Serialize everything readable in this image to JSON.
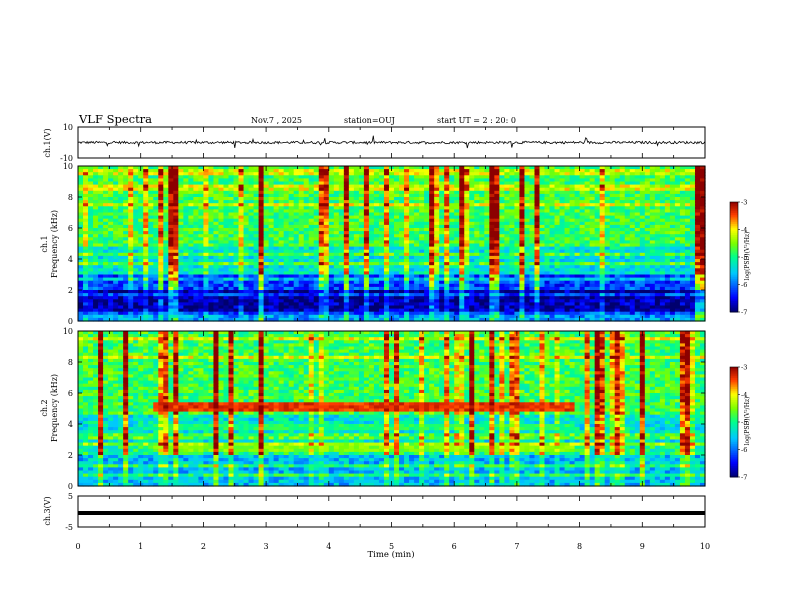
{
  "header": {
    "title": "VLF Spectra",
    "date": "Nov.7 , 2025",
    "station": "station=OUJ",
    "start": "start UT = 2 : 20: 0"
  },
  "chart_data": [
    {
      "type": "line",
      "panel": "ch1-waveform",
      "ylabel": "ch.1(V)",
      "ylim": [
        -10,
        10
      ],
      "yticks": [
        "10",
        "-10"
      ],
      "xlim": [
        0,
        10
      ],
      "series": [
        {
          "baseline": 0,
          "noise_amplitude": 0.8,
          "spike_amplitude": 4
        }
      ]
    },
    {
      "type": "heatmap",
      "panel": "ch1-spectrogram",
      "ylabel": "ch.1 Frequency (kHz)",
      "ylabel_line1": "ch.1",
      "ylabel_line2": "Frequency (kHz)",
      "ylim": [
        0,
        10
      ],
      "yticks": [
        "0",
        "2",
        "4",
        "6",
        "8",
        "10"
      ],
      "xlim": [
        0,
        10
      ],
      "bands": [
        {
          "from": 0,
          "to": 0.5,
          "level": 0.3
        },
        {
          "from": 0.5,
          "to": 2.0,
          "level": 0.05
        },
        {
          "from": 2.0,
          "to": 3.0,
          "level": 0.2
        },
        {
          "from": 3.0,
          "to": 4.8,
          "level": 0.42
        },
        {
          "from": 4.8,
          "to": 10,
          "level": 0.55
        }
      ],
      "colorbar": {
        "label": "log(PSD)(V²/Hz)",
        "ticks": [
          "-3",
          "-4",
          "-5",
          "-6",
          "-7"
        ],
        "range": [
          -7,
          -3
        ]
      }
    },
    {
      "type": "heatmap",
      "panel": "ch2-spectrogram",
      "ylabel": "ch.2 Frequency (kHz)",
      "ylabel_line1": "ch.2",
      "ylabel_line2": "Frequency (kHz)",
      "ylim": [
        0,
        10
      ],
      "yticks": [
        "0",
        "2",
        "4",
        "6",
        "8",
        "10"
      ],
      "xlim": [
        0,
        10
      ],
      "bands": [
        {
          "from": 0,
          "to": 2.0,
          "level": 0.35
        },
        {
          "from": 2.0,
          "to": 2.8,
          "level": 0.5
        },
        {
          "from": 2.8,
          "to": 4.8,
          "level": 0.42
        },
        {
          "from": 4.8,
          "to": 10,
          "level": 0.55
        }
      ],
      "emission_lines": [
        {
          "freq_kHz": 5.1,
          "t_start": 1.2,
          "t_end": 7.95,
          "level": 0.9
        },
        {
          "freq_kHz": 2.5,
          "t_start": 1.2,
          "t_end": 7.95,
          "level": 0.62
        },
        {
          "freq_kHz": 3.8,
          "t_start": 1.2,
          "t_end": 7.95,
          "level": 0.52
        }
      ],
      "colorbar": {
        "label": "log(PSD)(V²/Hz)",
        "ticks": [
          "-3",
          "-4",
          "-5",
          "-6",
          "-7"
        ],
        "range": [
          -7,
          -3
        ]
      }
    },
    {
      "type": "line",
      "panel": "ch3-waveform",
      "ylabel": "ch.3(V)",
      "ylim": [
        -5,
        5
      ],
      "yticks": [
        "5",
        "-5"
      ],
      "xlim": [
        0,
        10
      ],
      "xlabel": "Time (min)",
      "xticks": [
        "0",
        "1",
        "2",
        "3",
        "4",
        "5",
        "6",
        "7",
        "8",
        "9",
        "10"
      ],
      "series": [
        {
          "baseline": -0.5
        }
      ]
    }
  ],
  "colors": {
    "frame": "#000000",
    "trace": "#000000"
  }
}
